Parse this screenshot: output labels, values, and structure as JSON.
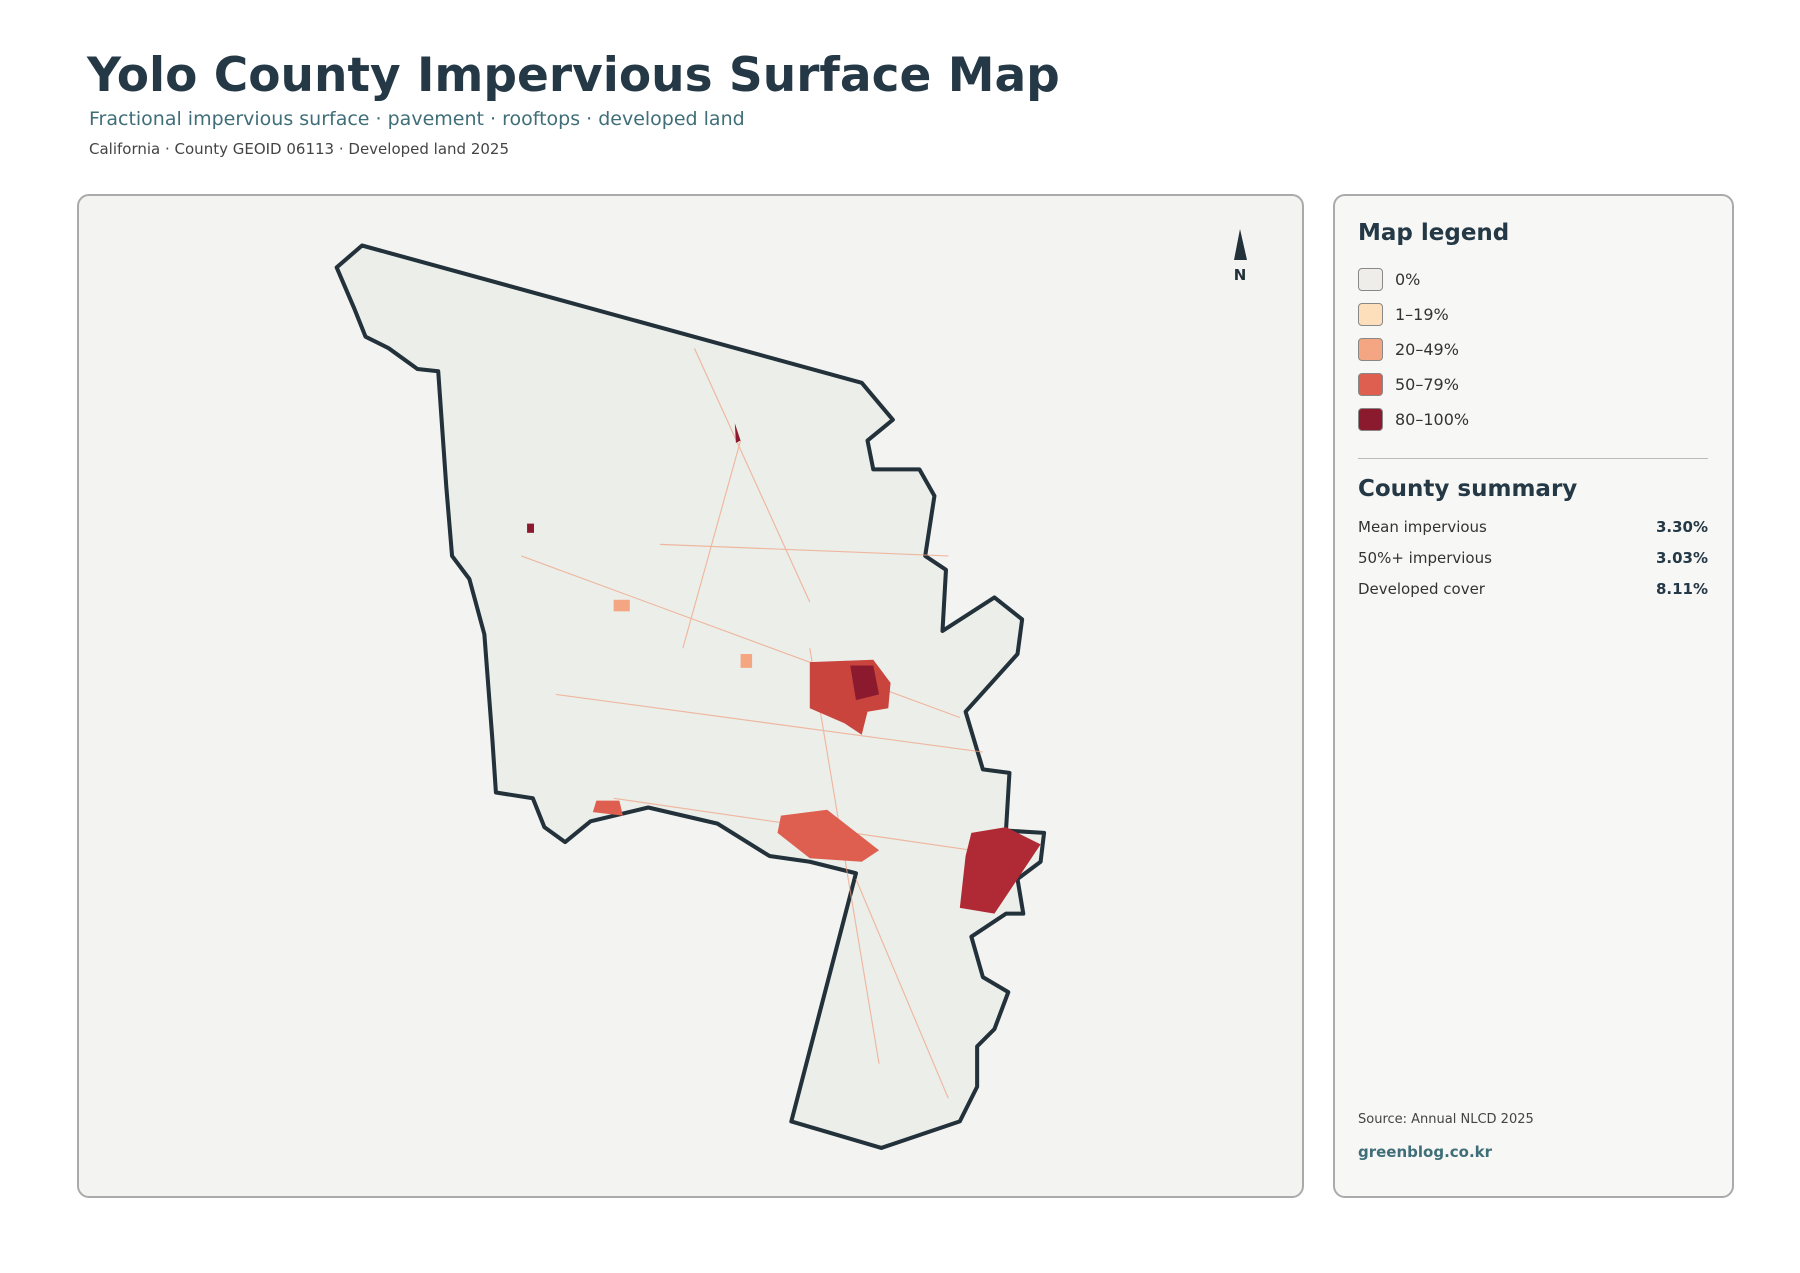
{
  "header": {
    "title": "Yolo County Impervious Surface Map",
    "subtitle": "Fractional impervious surface · pavement · rooftops · developed land",
    "meta": "California · County GEOID 06113 · Developed land 2025"
  },
  "map": {
    "north": "N"
  },
  "legend": {
    "title": "Map legend",
    "items": [
      {
        "label": "0%",
        "color": "#eeede9"
      },
      {
        "label": "1–19%",
        "color": "#fde0bb"
      },
      {
        "label": "20–49%",
        "color": "#f4a582"
      },
      {
        "label": "50–79%",
        "color": "#de5f4f"
      },
      {
        "label": "80–100%",
        "color": "#8c1a2f"
      }
    ]
  },
  "summary": {
    "title": "County summary",
    "rows": [
      {
        "label": "Mean impervious",
        "value": "3.30%"
      },
      {
        "label": "50%+ impervious",
        "value": "3.03%"
      },
      {
        "label": "Developed cover",
        "value": "8.11%"
      }
    ]
  },
  "footer": {
    "source": "Source: Annual NLCD 2025",
    "site": "greenblog.co.kr"
  }
}
